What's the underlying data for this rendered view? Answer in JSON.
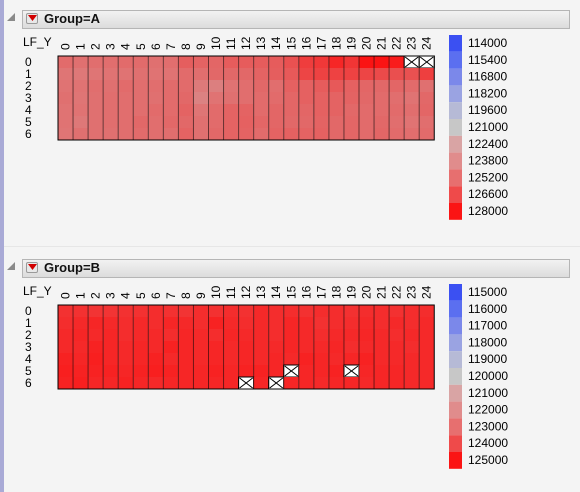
{
  "panels": [
    {
      "title": "Group=A",
      "ylabel": "LF_Y",
      "legend_values": [
        "114000",
        "115400",
        "116800",
        "118200",
        "119600",
        "121000",
        "122400",
        "123800",
        "125200",
        "126600",
        "128000"
      ],
      "legend_colors": [
        "#3b50f2",
        "#5b6ff0",
        "#7b88ea",
        "#9aa3e2",
        "#b6bad6",
        "#c7c7c7",
        "#d9a4a4",
        "#e08c8c",
        "#e76f6f",
        "#ef4a4a",
        "#fb1414"
      ],
      "missing": [
        [
          0,
          23
        ],
        [
          0,
          24
        ]
      ]
    },
    {
      "title": "Group=B",
      "ylabel": "LF_Y",
      "legend_values": [
        "115000",
        "116000",
        "117000",
        "118000",
        "119000",
        "120000",
        "121000",
        "122000",
        "123000",
        "124000",
        "125000"
      ],
      "legend_colors": [
        "#3b50f2",
        "#5b6ff0",
        "#7b88ea",
        "#9aa3e2",
        "#b6bad6",
        "#c7c7c7",
        "#d9a4a4",
        "#e08c8c",
        "#e76f6f",
        "#ef4a4a",
        "#fb1414"
      ],
      "missing": [
        [
          5,
          15
        ],
        [
          5,
          19
        ],
        [
          6,
          12
        ],
        [
          6,
          14
        ]
      ]
    }
  ],
  "chart_data": [
    {
      "type": "heatmap",
      "title": "Group=A",
      "x_categories": [
        "0",
        "1",
        "2",
        "3",
        "4",
        "5",
        "6",
        "7",
        "8",
        "9",
        "10",
        "11",
        "12",
        "13",
        "14",
        "15",
        "16",
        "17",
        "18",
        "19",
        "20",
        "21",
        "22",
        "23",
        "24"
      ],
      "y_categories": [
        "0",
        "1",
        "2",
        "3",
        "4",
        "5",
        "6"
      ],
      "ylabel": "LF_Y",
      "color_scale": {
        "min": 114000,
        "max": 128000,
        "low": "#3b50f2",
        "mid": "#c7c7c7",
        "high": "#fb1414"
      },
      "values": [
        [
          124600,
          124400,
          124500,
          124500,
          124600,
          124600,
          124400,
          124500,
          125100,
          124900,
          124800,
          125200,
          125200,
          125200,
          125200,
          125600,
          126400,
          126600,
          127300,
          126700,
          128000,
          128000,
          127700,
          null,
          null
        ],
        [
          124200,
          124100,
          124200,
          124300,
          124300,
          124400,
          124300,
          124300,
          124600,
          124500,
          124700,
          124700,
          124700,
          124900,
          125100,
          125300,
          126100,
          126200,
          126200,
          126200,
          126100,
          125900,
          125700,
          125600,
          126300
        ],
        [
          124300,
          124300,
          124500,
          124400,
          124600,
          124500,
          124500,
          124600,
          124600,
          124000,
          123800,
          124300,
          124500,
          124700,
          124500,
          125000,
          125000,
          125200,
          125300,
          125000,
          124800,
          124700,
          124800,
          124600,
          124400
        ],
        [
          124400,
          124200,
          124400,
          124500,
          124500,
          124500,
          124400,
          124600,
          124700,
          123700,
          124300,
          124400,
          124500,
          124600,
          124600,
          124800,
          125000,
          125000,
          124900,
          124900,
          124700,
          124600,
          124500,
          124300,
          124700
        ],
        [
          124300,
          124300,
          124400,
          124500,
          124500,
          124500,
          124600,
          124600,
          124900,
          124200,
          124600,
          124900,
          124900,
          124600,
          124800,
          124800,
          124800,
          125000,
          124900,
          124700,
          124600,
          124600,
          124600,
          124500,
          124800
        ],
        [
          124300,
          124100,
          124400,
          124500,
          124500,
          124700,
          124500,
          124700,
          124700,
          124400,
          124600,
          124900,
          125000,
          124800,
          124800,
          124700,
          124700,
          124900,
          124700,
          124800,
          124600,
          124700,
          124500,
          124300,
          124500
        ],
        [
          124200,
          124400,
          124400,
          124400,
          124500,
          124600,
          124500,
          124500,
          124900,
          124400,
          124700,
          124900,
          124900,
          124600,
          124900,
          125000,
          124900,
          125000,
          124700,
          124800,
          124600,
          124800,
          124600,
          124500,
          124600
        ]
      ]
    },
    {
      "type": "heatmap",
      "title": "Group=B",
      "x_categories": [
        "0",
        "1",
        "2",
        "3",
        "4",
        "5",
        "6",
        "7",
        "8",
        "9",
        "10",
        "11",
        "12",
        "13",
        "14",
        "15",
        "16",
        "17",
        "18",
        "19",
        "20",
        "21",
        "22",
        "23",
        "24"
      ],
      "y_categories": [
        "0",
        "1",
        "2",
        "3",
        "4",
        "5",
        "6"
      ],
      "ylabel": "LF_Y",
      "color_scale": {
        "min": 115000,
        "max": 125000,
        "low": "#3b50f2",
        "mid": "#c7c7c7",
        "high": "#fb1414"
      },
      "values": [
        [
          124200,
          124200,
          124100,
          124100,
          124200,
          124200,
          124300,
          124200,
          124100,
          124300,
          124200,
          124300,
          124200,
          124400,
          124300,
          124300,
          124200,
          124300,
          124300,
          124200,
          124300,
          124300,
          124200,
          124300,
          124300
        ],
        [
          124300,
          124400,
          124500,
          124400,
          124300,
          124400,
          124300,
          124500,
          124400,
          124300,
          124600,
          124400,
          124300,
          124400,
          124300,
          124500,
          124400,
          124200,
          124300,
          124300,
          124400,
          124300,
          124400,
          124300,
          124400
        ],
        [
          124400,
          124500,
          124400,
          124500,
          124300,
          124400,
          124400,
          124300,
          124500,
          124400,
          124300,
          124500,
          124400,
          124400,
          124300,
          124500,
          124400,
          124300,
          124400,
          124400,
          124500,
          124400,
          124300,
          124400,
          124400
        ],
        [
          124400,
          124400,
          124600,
          124500,
          124400,
          124500,
          124400,
          124600,
          124500,
          124400,
          124500,
          124400,
          124500,
          124400,
          124400,
          124500,
          124400,
          124400,
          124500,
          124300,
          124400,
          124400,
          124400,
          124300,
          124400
        ],
        [
          124600,
          124500,
          124700,
          124500,
          124400,
          124500,
          124600,
          124400,
          124500,
          124400,
          124500,
          124400,
          124500,
          124400,
          124500,
          124400,
          124600,
          124500,
          124400,
          124500,
          124600,
          124400,
          124400,
          124400,
          124400
        ],
        [
          124700,
          124600,
          124600,
          124600,
          124500,
          124600,
          124700,
          124600,
          124500,
          124500,
          124600,
          124500,
          124600,
          124600,
          124500,
          null,
          124500,
          124500,
          124600,
          null,
          124500,
          124500,
          124500,
          124400,
          124400
        ],
        [
          124600,
          124700,
          124500,
          124500,
          124600,
          124500,
          124400,
          124500,
          124500,
          124500,
          124500,
          124500,
          null,
          124500,
          null,
          124500,
          124500,
          124400,
          124500,
          124500,
          124400,
          124500,
          124500,
          124400,
          124400
        ]
      ]
    }
  ]
}
